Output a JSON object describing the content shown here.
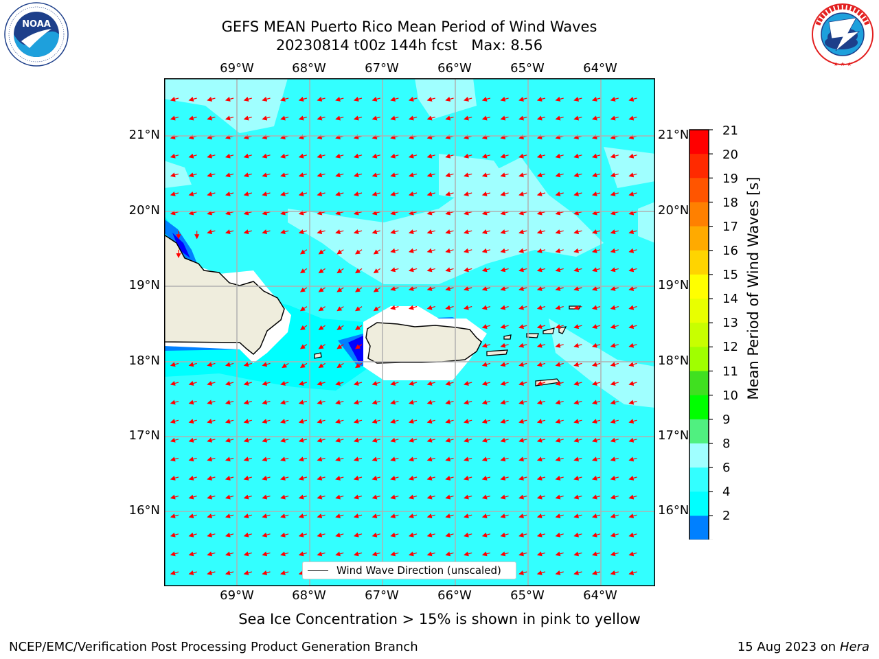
{
  "title": {
    "line1": "GEFS MEAN Puerto Rico Mean Period of Wind Waves",
    "line2": "20230814 t00z 144h fcst   Max: 8.56"
  },
  "logos": {
    "left": {
      "name": "NOAA",
      "ring_text": "NATIONAL OCEANIC AND ATMOSPHERIC ADMINISTRATION · U.S. DEPARTMENT OF COMMERCE"
    },
    "right": {
      "name": "NATIONAL WEATHER SERVICE"
    }
  },
  "map": {
    "lon_labels": [
      "69°W",
      "68°W",
      "67°W",
      "66°W",
      "65°W",
      "64°W"
    ],
    "lat_labels": [
      "21°N",
      "20°N",
      "19°N",
      "18°N",
      "17°N",
      "16°N"
    ],
    "extent": {
      "lon_min": -70.0,
      "lon_max": -63.25,
      "lat_min": 15.0,
      "lat_max": 21.75
    },
    "gridlines": true,
    "ocean_color": "#33ffff",
    "land_color": "#efeddd",
    "arrow_color": "#ff0000",
    "legend_label": "Wind Wave Direction (unscaled)"
  },
  "colorbar": {
    "label": "Mean Period of Wind Waves [s]",
    "ticks": [
      "21",
      "20",
      "19",
      "18",
      "17",
      "16",
      "15",
      "14",
      "13",
      "12",
      "11",
      "10",
      "9",
      "8",
      "6",
      "4",
      "2"
    ],
    "colors": [
      "#ff0000",
      "#ff2a00",
      "#ff5500",
      "#ff8000",
      "#ffaa00",
      "#ffd400",
      "#ffff00",
      "#e8ff00",
      "#c8ff00",
      "#a0ff00",
      "#40e020",
      "#00ff00",
      "#50f080",
      "#a0ffff",
      "#33ffff",
      "#00ffff",
      "#0080ff"
    ],
    "extend_color": "#0000ff"
  },
  "subtitle": "Sea Ice Concentration > 15% is shown in pink to yellow",
  "footer": {
    "left": "NCEP/EMC/Verification Post Processing Product Generation Branch",
    "right_date": "15 Aug 2023 on",
    "right_machine": "Hera"
  }
}
